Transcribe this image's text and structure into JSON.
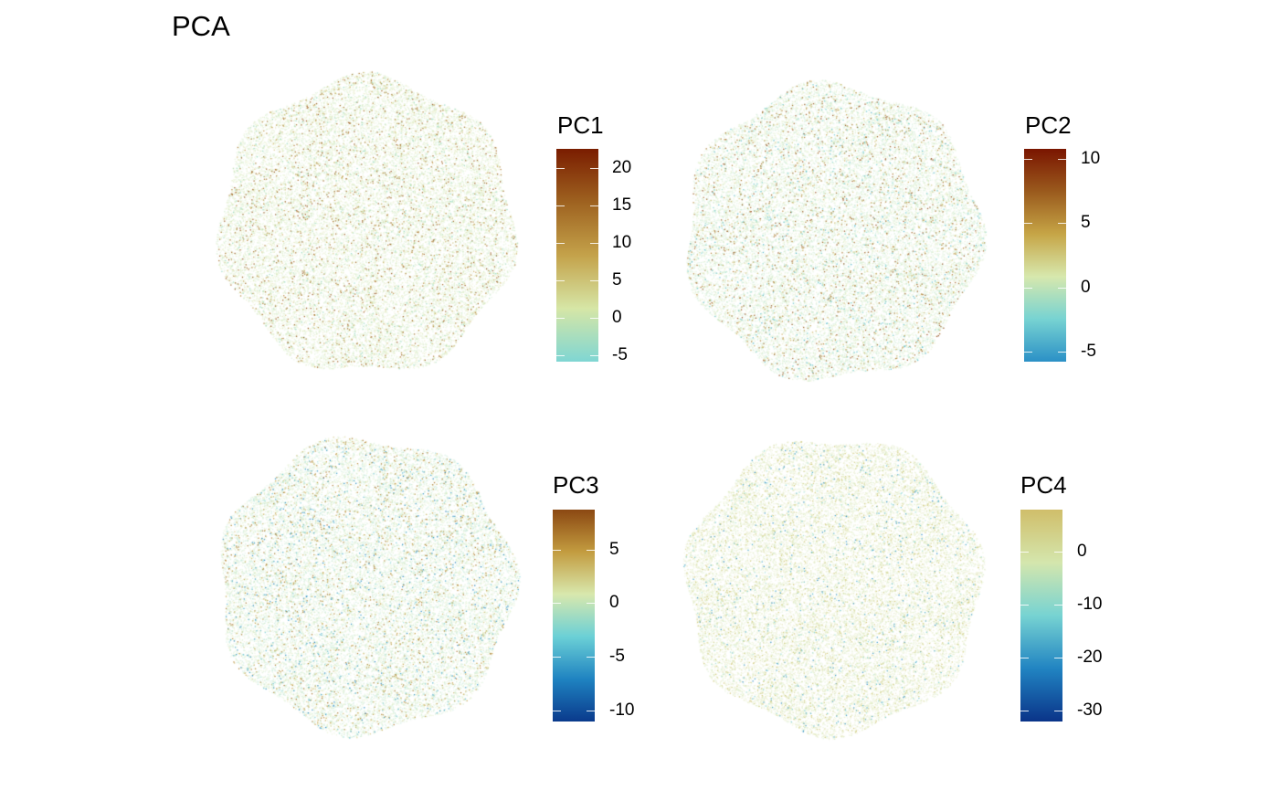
{
  "title": "PCA",
  "chart_data": [
    {
      "type": "heatmap",
      "name": "PC1",
      "legend_title": "PC1",
      "range": [
        -5.8,
        22.5
      ],
      "ticks": [
        -5,
        0,
        5,
        10,
        15,
        20
      ],
      "tick_labels": [
        "-5",
        "0",
        "5",
        "10",
        "15",
        "20"
      ],
      "colors": [
        "#7fd6d3",
        "#d6e6a6",
        "#c4a24a",
        "#9e6220",
        "#7a1d00"
      ]
    },
    {
      "type": "heatmap",
      "name": "PC2",
      "legend_title": "PC2",
      "range": [
        -5.8,
        10.8
      ],
      "ticks": [
        -5,
        0,
        5,
        10
      ],
      "tick_labels": [
        "-5",
        "0",
        "5",
        "10"
      ],
      "colors": [
        "#2b90c6",
        "#77d3d2",
        "#d7e8ad",
        "#c6a546",
        "#9a5a1d",
        "#7a1500"
      ]
    },
    {
      "type": "heatmap",
      "name": "PC3",
      "legend_title": "PC3",
      "range": [
        -11.0,
        8.7
      ],
      "ticks": [
        -10,
        -5,
        0,
        5
      ],
      "tick_labels": [
        "-10",
        "-5",
        "0",
        "5"
      ],
      "colors": [
        "#0a3a8c",
        "#1f83c1",
        "#6bd0d6",
        "#d8e8ad",
        "#c39c40",
        "#8b4812"
      ]
    },
    {
      "type": "heatmap",
      "name": "PC4",
      "legend_title": "PC4",
      "range": [
        -32.0,
        8.0
      ],
      "ticks": [
        -30,
        -20,
        -10,
        0
      ],
      "tick_labels": [
        "-30",
        "-20",
        "-10",
        "0"
      ],
      "colors": [
        "#0a3489",
        "#2184c2",
        "#77d3d2",
        "#d4e6ad",
        "#d0be6a"
      ]
    }
  ]
}
